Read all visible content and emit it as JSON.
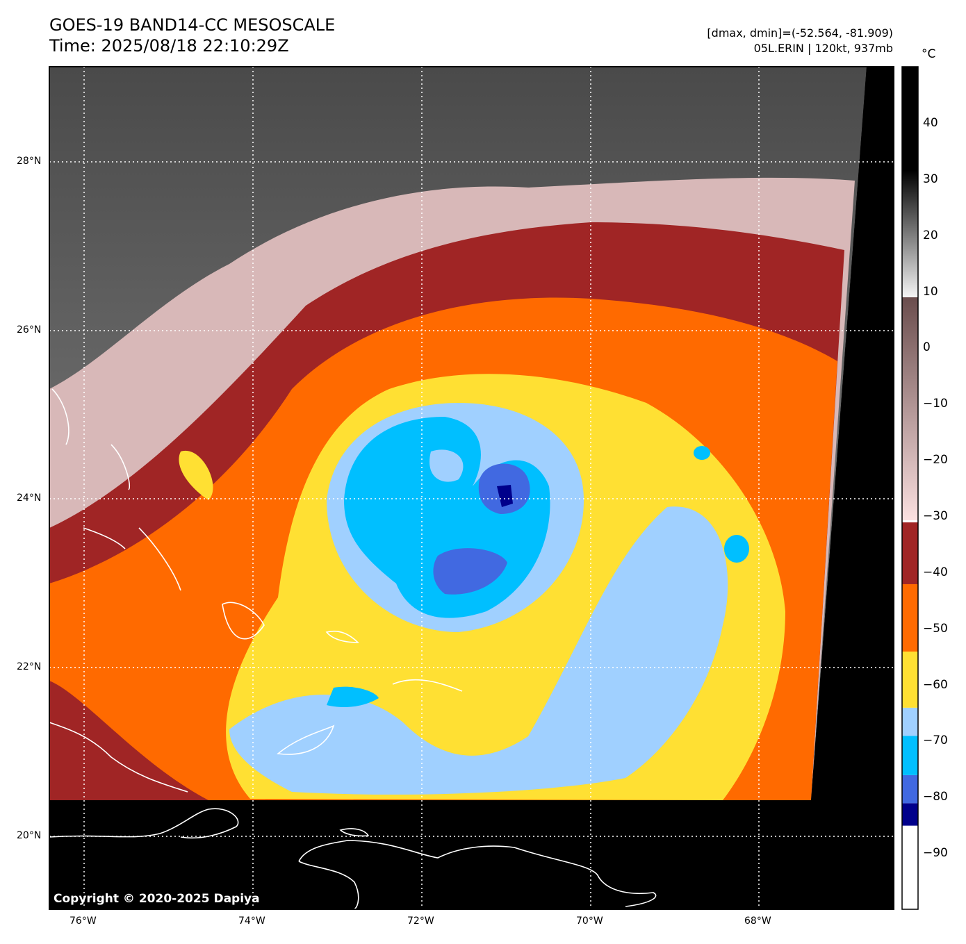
{
  "header": {
    "title": "GOES-19 BAND14-CC MESOSCALE",
    "time": "Time: 2025/08/18 22:10:29Z",
    "range": "[dmax, dmin]=(-52.564, -81.909)",
    "storm": "05L.ERIN | 120kt, 937mb"
  },
  "axes": {
    "lat_labels": [
      "28°N",
      "26°N",
      "24°N",
      "22°N",
      "20°N"
    ],
    "lon_labels": [
      "76°W",
      "74°W",
      "72°W",
      "70°W",
      "68°W"
    ]
  },
  "colorbar": {
    "unit": "°C",
    "range": [
      -100,
      50
    ],
    "ticks": [
      "40",
      "30",
      "20",
      "10",
      "0",
      "−10",
      "−20",
      "−30",
      "−40",
      "−50",
      "−60",
      "−70",
      "−80",
      "−90"
    ],
    "segments": [
      {
        "from": -100,
        "to": -85,
        "color": "#ffffff"
      },
      {
        "from": -85,
        "to": -81,
        "color": "#00008b"
      },
      {
        "from": -81,
        "to": -76,
        "color": "#4169e1"
      },
      {
        "from": -76,
        "to": -69,
        "color": "#00bfff"
      },
      {
        "from": -69,
        "to": -64,
        "color": "#a0d0ff"
      },
      {
        "from": -64,
        "to": -54,
        "color": "#ffe033"
      },
      {
        "from": -54,
        "to": -42,
        "color": "#ff6a00"
      },
      {
        "from": -42,
        "to": -31,
        "color": "#a02525"
      }
    ]
  },
  "copyright": "Copyright © 2020-2025 Dapiya"
}
